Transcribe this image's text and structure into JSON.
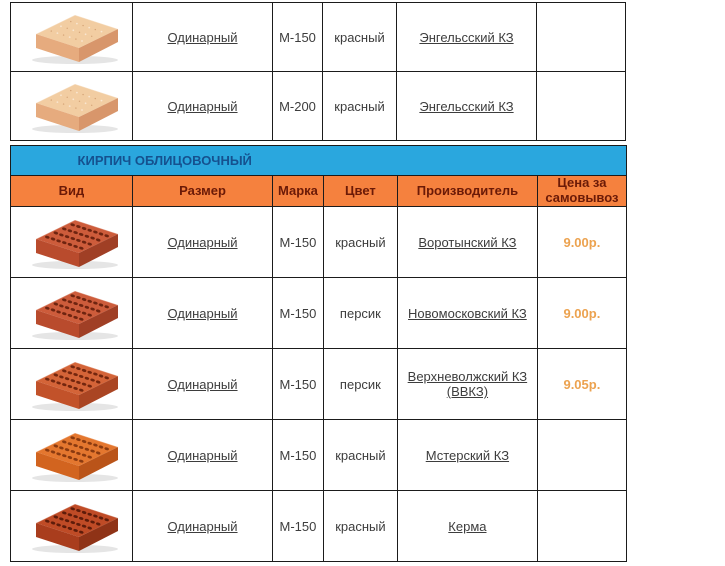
{
  "banner": {
    "title": "КИРПИЧ ОБЛИЦОВОЧНЫЙ",
    "background": "#2aa7de",
    "text_color": "#15518f"
  },
  "header": {
    "background": "#f5813e",
    "text_color": "#6b1a07",
    "columns": [
      "Вид",
      "Размер",
      "Марка",
      "Цвет",
      "Производитель",
      "Цена за самовывоз"
    ]
  },
  "styles": {
    "price_color": "#eca24f",
    "link_color": "#3d3d3d",
    "border_color": "#1b1b1b"
  },
  "upper_table": {
    "rows": [
      {
        "size": "Одинарный",
        "grade": "М-150",
        "color": "красный",
        "manufacturer": "Энгельсский КЗ",
        "price": "",
        "brick": {
          "name": "sand-solid-brick",
          "top": "#f2cda2",
          "front": "#e6ab7e",
          "side": "#d8966b",
          "hole_color": "",
          "holes": false
        }
      },
      {
        "size": "Одинарный",
        "grade": "М-200",
        "color": "красный",
        "manufacturer": "Энгельсский КЗ",
        "price": "",
        "brick": {
          "name": "sand-solid-brick",
          "top": "#f2cda2",
          "front": "#e6ab7e",
          "side": "#d8966b",
          "hole_color": "",
          "holes": false
        }
      }
    ]
  },
  "lower_table": {
    "rows": [
      {
        "size": "Одинарный",
        "grade": "М-150",
        "color": "красный",
        "manufacturer": "Воротынский КЗ",
        "price": "9.00р.",
        "brick": {
          "name": "red-perforated-brick",
          "top": "#cd5c3b",
          "front": "#b94b2d",
          "side": "#a03f25",
          "hole_color": "#6e2410",
          "holes": true
        }
      },
      {
        "size": "Одинарный",
        "grade": "М-150",
        "color": "персик",
        "manufacturer": "Новомосковский КЗ",
        "price": "9.00р.",
        "brick": {
          "name": "red-perforated-brick",
          "top": "#cd5c3b",
          "front": "#b94b2d",
          "side": "#a03f25",
          "hole_color": "#6e2410",
          "holes": true
        }
      },
      {
        "size": "Одинарный",
        "grade": "М-150",
        "color": "персик",
        "manufacturer": "Верхневолжский КЗ (ВВКЗ)",
        "price": "9.05р.",
        "brick": {
          "name": "orange-perforated-brick",
          "top": "#d46438",
          "front": "#c2522a",
          "side": "#aa4523",
          "hole_color": "#73260e",
          "holes": true
        }
      },
      {
        "size": "Одинарный",
        "grade": "М-150",
        "color": "красный",
        "manufacturer": "Мстерский КЗ",
        "price": "",
        "brick": {
          "name": "bright-orange-perforated-brick",
          "top": "#e4772f",
          "front": "#d2641f",
          "side": "#ba5419",
          "hole_color": "#8a3a10",
          "holes": true
        }
      },
      {
        "size": "Одинарный",
        "grade": "М-150",
        "color": "красный",
        "manufacturer": "Керма",
        "price": "",
        "brick": {
          "name": "dark-red-perforated-brick",
          "top": "#bf4b26",
          "front": "#a93d1d",
          "side": "#8f3317",
          "hole_color": "#5e1c0a",
          "holes": true
        }
      }
    ]
  }
}
